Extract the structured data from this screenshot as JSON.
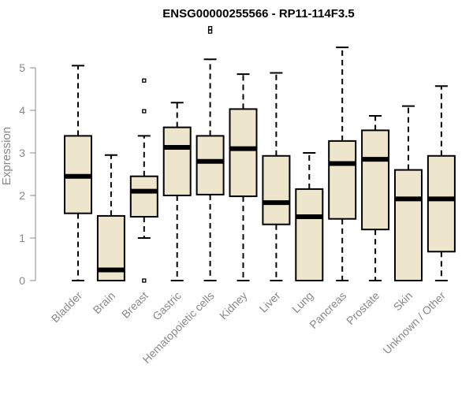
{
  "chart_data": {
    "type": "boxplot",
    "title": "ENSG00000255566 - RP11-114F3.5",
    "xlabel": "",
    "ylabel": "Expression",
    "ylim": [
      0,
      5.5
    ],
    "yticks": [
      "0",
      "1",
      "2",
      "3",
      "4",
      "5"
    ],
    "grid": false,
    "box_fill": "#ede6cc",
    "box_stroke": "#000000",
    "categories": [
      "Bladder",
      "Brain",
      "Breast",
      "Gastric",
      "Hematopoietic cells",
      "Kidney",
      "Liver",
      "Lung",
      "Pancreas",
      "Prostate",
      "Skin",
      "Unknown / Other"
    ],
    "boxes": [
      {
        "category": "Bladder",
        "whisker_low": 0,
        "q1": 1.58,
        "median": 2.45,
        "q3": 3.4,
        "whisker_high": 5.05,
        "outliers": []
      },
      {
        "category": "Brain",
        "whisker_low": 0,
        "q1": 0,
        "median": 0.25,
        "q3": 1.52,
        "whisker_high": 2.95,
        "outliers": []
      },
      {
        "category": "Breast",
        "whisker_low": 1.0,
        "q1": 1.5,
        "median": 2.1,
        "q3": 2.45,
        "whisker_high": 3.4,
        "outliers": [
          0,
          3.98,
          4.7
        ]
      },
      {
        "category": "Gastric",
        "whisker_low": 0,
        "q1": 2.0,
        "median": 3.13,
        "q3": 3.6,
        "whisker_high": 4.18,
        "outliers": []
      },
      {
        "category": "Hematopoietic cells",
        "whisker_low": 0,
        "q1": 2.02,
        "median": 2.8,
        "q3": 3.4,
        "whisker_high": 5.2,
        "outliers": [
          5.85,
          5.93
        ]
      },
      {
        "category": "Kidney",
        "whisker_low": 0,
        "q1": 1.98,
        "median": 3.1,
        "q3": 4.03,
        "whisker_high": 4.85,
        "outliers": []
      },
      {
        "category": "Liver",
        "whisker_low": 0,
        "q1": 1.32,
        "median": 1.83,
        "q3": 2.93,
        "whisker_high": 4.88,
        "outliers": []
      },
      {
        "category": "Lung",
        "whisker_low": 0,
        "q1": 0,
        "median": 1.5,
        "q3": 2.15,
        "whisker_high": 3.0,
        "outliers": []
      },
      {
        "category": "Pancreas",
        "whisker_low": 0,
        "q1": 1.45,
        "median": 2.75,
        "q3": 3.28,
        "whisker_high": 5.48,
        "outliers": []
      },
      {
        "category": "Prostate",
        "whisker_low": 0,
        "q1": 1.2,
        "median": 2.85,
        "q3": 3.53,
        "whisker_high": 3.87,
        "outliers": []
      },
      {
        "category": "Skin",
        "whisker_low": 0,
        "q1": 0,
        "median": 1.92,
        "q3": 2.6,
        "whisker_high": 4.1,
        "outliers": []
      },
      {
        "category": "Unknown / Other",
        "whisker_low": 0,
        "q1": 0.68,
        "median": 1.92,
        "q3": 2.93,
        "whisker_high": 4.57,
        "outliers": []
      }
    ]
  }
}
